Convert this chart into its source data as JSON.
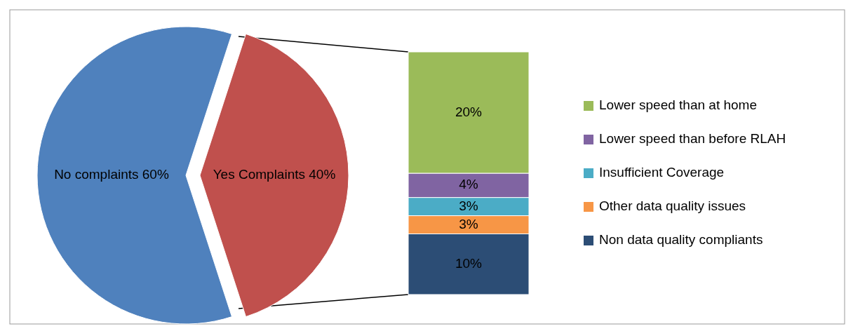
{
  "chart_data": [
    {
      "type": "pie",
      "categories": [
        "No complaints",
        "Yes Complaints"
      ],
      "values": [
        60,
        40
      ],
      "colors": [
        "#4f81bd",
        "#c0504d"
      ],
      "value_labels": [
        "60%",
        "40%"
      ],
      "legend": false
    },
    {
      "type": "bar",
      "stacked": true,
      "categories": [
        null
      ],
      "legend": "right",
      "series": [
        {
          "name": "Non data quality compliants",
          "color": "#2c4d75",
          "values": [
            10
          ],
          "value_labels": [
            "10%"
          ]
        },
        {
          "name": "Other data quality issues",
          "color": "#f79646",
          "values": [
            3
          ],
          "value_labels": [
            "3%"
          ]
        },
        {
          "name": "Insufficient Coverage",
          "color": "#4bacc6",
          "values": [
            3
          ],
          "value_labels": [
            "3%"
          ]
        },
        {
          "name": "Lower speed than before RLAH",
          "color": "#8064a2",
          "values": [
            4
          ],
          "value_labels": [
            "4%"
          ]
        },
        {
          "name": "Lower speed than at home",
          "color": "#9bbb59",
          "values": [
            20
          ],
          "value_labels": [
            "20%"
          ]
        }
      ]
    }
  ]
}
